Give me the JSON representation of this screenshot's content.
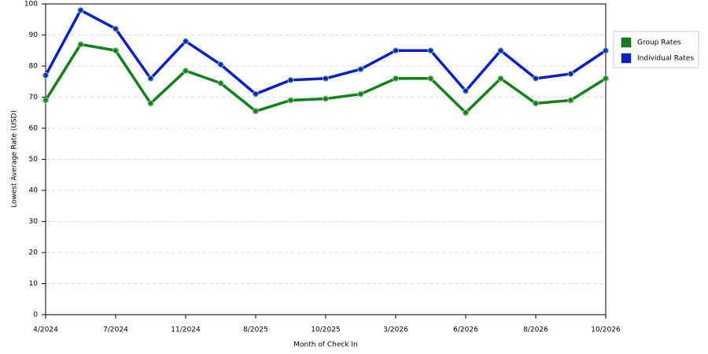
{
  "chart_data": {
    "type": "line",
    "x_label": "Month of Check In",
    "y_label": "Lowest Average Rate (USD)",
    "categories": [
      "4/2024",
      null,
      "7/2024",
      null,
      "11/2024",
      null,
      "8/2025",
      null,
      "10/2025",
      null,
      "3/2026",
      null,
      "6/2026",
      null,
      "8/2026",
      null,
      "10/2026"
    ],
    "series": [
      {
        "name": "Group Rates",
        "color": "#14801a",
        "values": [
          69,
          87,
          85,
          68,
          78.5,
          74.5,
          65.5,
          69,
          69.5,
          71,
          76,
          76,
          65,
          76,
          68,
          69,
          76
        ]
      },
      {
        "name": "Individual Rates",
        "color": "#0a1ec8",
        "values": [
          77,
          98,
          92,
          76,
          88,
          80.5,
          71,
          75.5,
          76,
          79,
          85,
          85,
          72,
          85,
          76,
          77.5,
          85
        ]
      }
    ],
    "ylim": [
      0,
      100
    ],
    "yticks": [
      0,
      10,
      20,
      30,
      40,
      50,
      60,
      70,
      80,
      90,
      100
    ],
    "grid": true,
    "legend": "right"
  }
}
